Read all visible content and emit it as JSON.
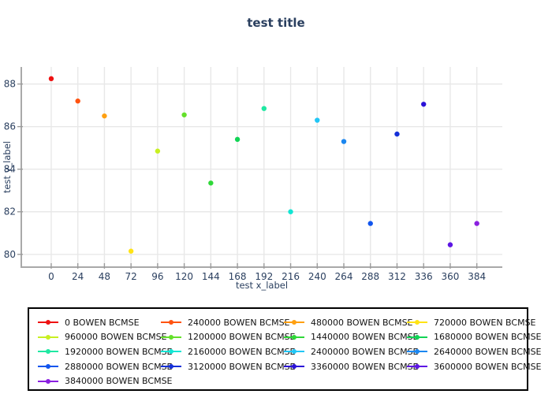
{
  "title": "test title",
  "colors": {
    "label": "#2a3f5f",
    "grid": "#e8e8e8",
    "axis": "#a9a9a9",
    "tick": "#9c9c9c",
    "legend_border": "#000000",
    "legend_text": "#111111",
    "background": "#ffffff"
  },
  "chart_data": {
    "type": "scatter",
    "title": "test title",
    "xlabel": "test x_label",
    "ylabel": "test y_label",
    "xlim": [
      -27,
      407
    ],
    "ylim": [
      79.4,
      88.8
    ],
    "xticks": [
      0,
      24,
      48,
      72,
      96,
      120,
      144,
      168,
      192,
      216,
      240,
      264,
      288,
      312,
      336,
      360,
      384
    ],
    "yticks": [
      80,
      82,
      84,
      86,
      88
    ],
    "grid": true,
    "legend_position": "bottom",
    "marker": "circle",
    "series": [
      {
        "name": "0 BOWEN BCMSE",
        "color": "#ee1111",
        "x": 0,
        "y": 88.25
      },
      {
        "name": "240000 BOWEN BCMSE",
        "color": "#ff5310",
        "x": 24,
        "y": 87.2
      },
      {
        "name": "480000 BOWEN BCMSE",
        "color": "#ffa011",
        "x": 48,
        "y": 86.5
      },
      {
        "name": "720000 BOWEN BCMSE",
        "color": "#ffe314",
        "x": 72,
        "y": 80.15
      },
      {
        "name": "960000 BOWEN BCMSE",
        "color": "#c8f021",
        "x": 96,
        "y": 84.85
      },
      {
        "name": "1200000 BOWEN BCMSE",
        "color": "#64e02a",
        "x": 120,
        "y": 86.55
      },
      {
        "name": "1440000 BOWEN BCMSE",
        "color": "#2fd838",
        "x": 144,
        "y": 83.35
      },
      {
        "name": "1680000 BOWEN BCMSE",
        "color": "#11d455",
        "x": 168,
        "y": 85.4
      },
      {
        "name": "1920000 BOWEN BCMSE",
        "color": "#1fe8a2",
        "x": 192,
        "y": 86.85
      },
      {
        "name": "2160000 BOWEN BCMSE",
        "color": "#12e6d4",
        "x": 216,
        "y": 82.0
      },
      {
        "name": "2400000 BOWEN BCMSE",
        "color": "#21c6f6",
        "x": 240,
        "y": 86.3
      },
      {
        "name": "2640000 BOWEN BCMSE",
        "color": "#1b87f0",
        "x": 264,
        "y": 85.3
      },
      {
        "name": "2880000 BOWEN BCMSE",
        "color": "#1155ee",
        "x": 288,
        "y": 81.45
      },
      {
        "name": "3120000 BOWEN BCMSE",
        "color": "#1530d8",
        "x": 312,
        "y": 85.65
      },
      {
        "name": "3360000 BOWEN BCMSE",
        "color": "#2b12d8",
        "x": 336,
        "y": 87.05
      },
      {
        "name": "3600000 BOWEN BCMSE",
        "color": "#5d16e4",
        "x": 360,
        "y": 80.45
      },
      {
        "name": "3840000 BOWEN BCMSE",
        "color": "#8a20e0",
        "x": 384,
        "y": 81.45
      }
    ]
  }
}
